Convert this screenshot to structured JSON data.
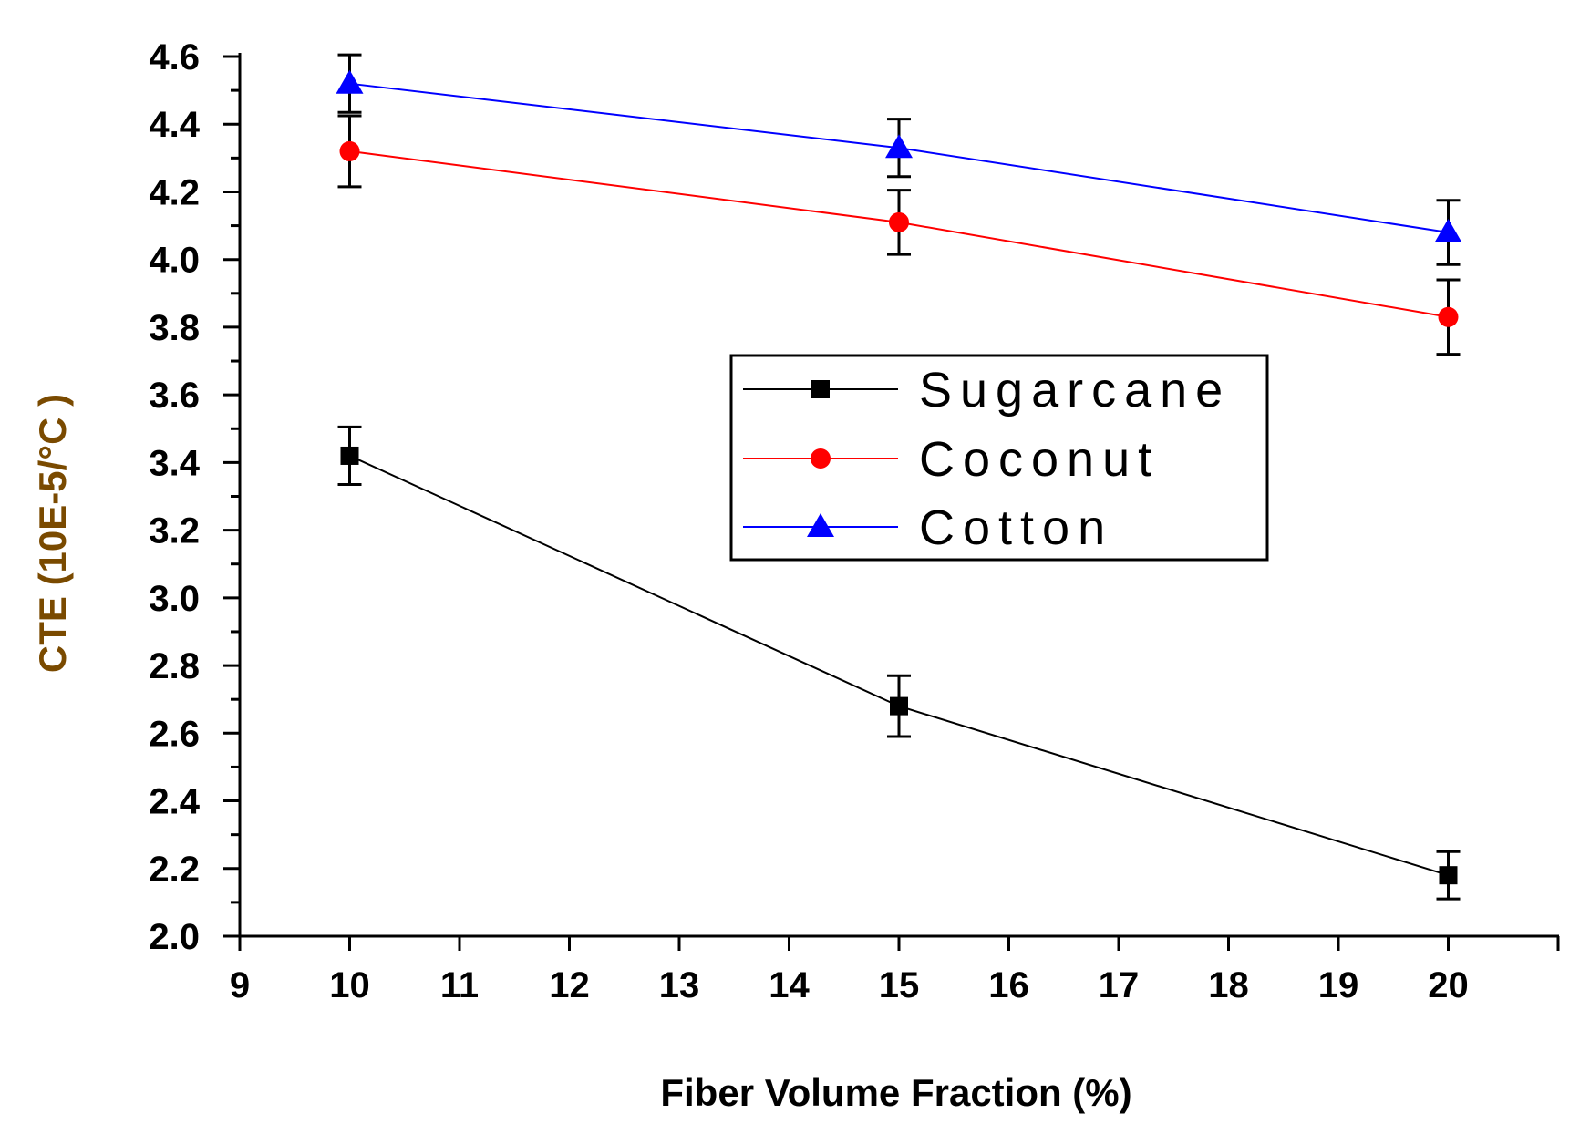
{
  "chart_data": {
    "type": "line",
    "title": "",
    "xlabel": "Fiber Volume Fraction (%)",
    "ylabel": "CTE (10E-5/°C )",
    "xlim": [
      9,
      21
    ],
    "ylim": [
      2.0,
      4.6
    ],
    "x_ticks": [
      "9",
      "10",
      "11",
      "12",
      "13",
      "14",
      "15",
      "16",
      "17",
      "18",
      "19",
      "20"
    ],
    "y_ticks": [
      "2.0",
      "2.2",
      "2.4",
      "2.6",
      "2.8",
      "3.0",
      "3.2",
      "3.4",
      "3.6",
      "3.8",
      "4.0",
      "4.2",
      "4.4",
      "4.6"
    ],
    "grid": false,
    "legend_position": "center-right",
    "x": [
      10,
      15,
      20
    ],
    "series": [
      {
        "name": "Sugarcane",
        "color": "#000000",
        "marker": "square",
        "values": [
          3.42,
          2.68,
          2.18
        ],
        "error": [
          0.085,
          0.09,
          0.07
        ]
      },
      {
        "name": "Coconut",
        "color": "#ff0000",
        "marker": "circle",
        "values": [
          4.32,
          4.11,
          3.83
        ],
        "error": [
          0.105,
          0.095,
          0.11
        ]
      },
      {
        "name": "Cotton",
        "color": "#0000ff",
        "marker": "triangle",
        "values": [
          4.52,
          4.33,
          4.08
        ],
        "error": [
          0.085,
          0.085,
          0.095
        ]
      }
    ],
    "colors": {
      "ylabel": "#7a4a00",
      "xlabel": "#000000"
    }
  }
}
